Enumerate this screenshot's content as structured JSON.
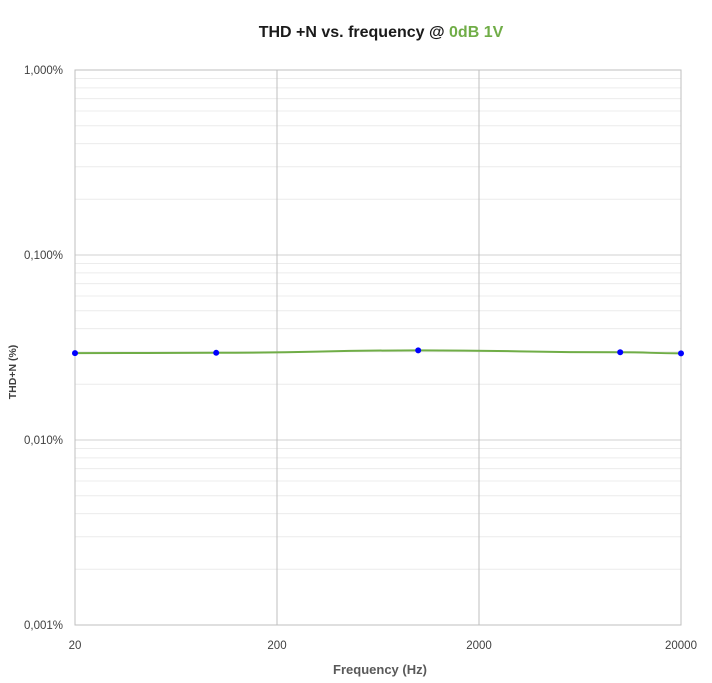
{
  "chart_data": {
    "type": "line",
    "title": {
      "prefix": "THD +N vs. frequency @ ",
      "highlight": "0dB 1V",
      "highlight_color": "#70ad47"
    },
    "xlabel": "Frequency (Hz)",
    "ylabel": "THD+N (%)",
    "x_scale": "log",
    "y_scale": "log",
    "xlim": [
      20,
      20000
    ],
    "ylim": [
      0.001,
      1.0
    ],
    "x_ticks": [
      {
        "value": 20,
        "label": "20"
      },
      {
        "value": 200,
        "label": "200"
      },
      {
        "value": 2000,
        "label": "2000"
      },
      {
        "value": 20000,
        "label": "20000"
      }
    ],
    "y_ticks": [
      {
        "value": 1.0,
        "label": "1,000%"
      },
      {
        "value": 0.1,
        "label": "0,100%"
      },
      {
        "value": 0.01,
        "label": "0,010%"
      },
      {
        "value": 0.001,
        "label": "0,001%"
      }
    ],
    "grid": true,
    "series": [
      {
        "line_color": "#70ad47",
        "marker_color": "#0000ff",
        "x": [
          20,
          100,
          1000,
          10000,
          20000
        ],
        "y": [
          0.0295,
          0.0296,
          0.0305,
          0.0298,
          0.0294
        ]
      }
    ]
  }
}
